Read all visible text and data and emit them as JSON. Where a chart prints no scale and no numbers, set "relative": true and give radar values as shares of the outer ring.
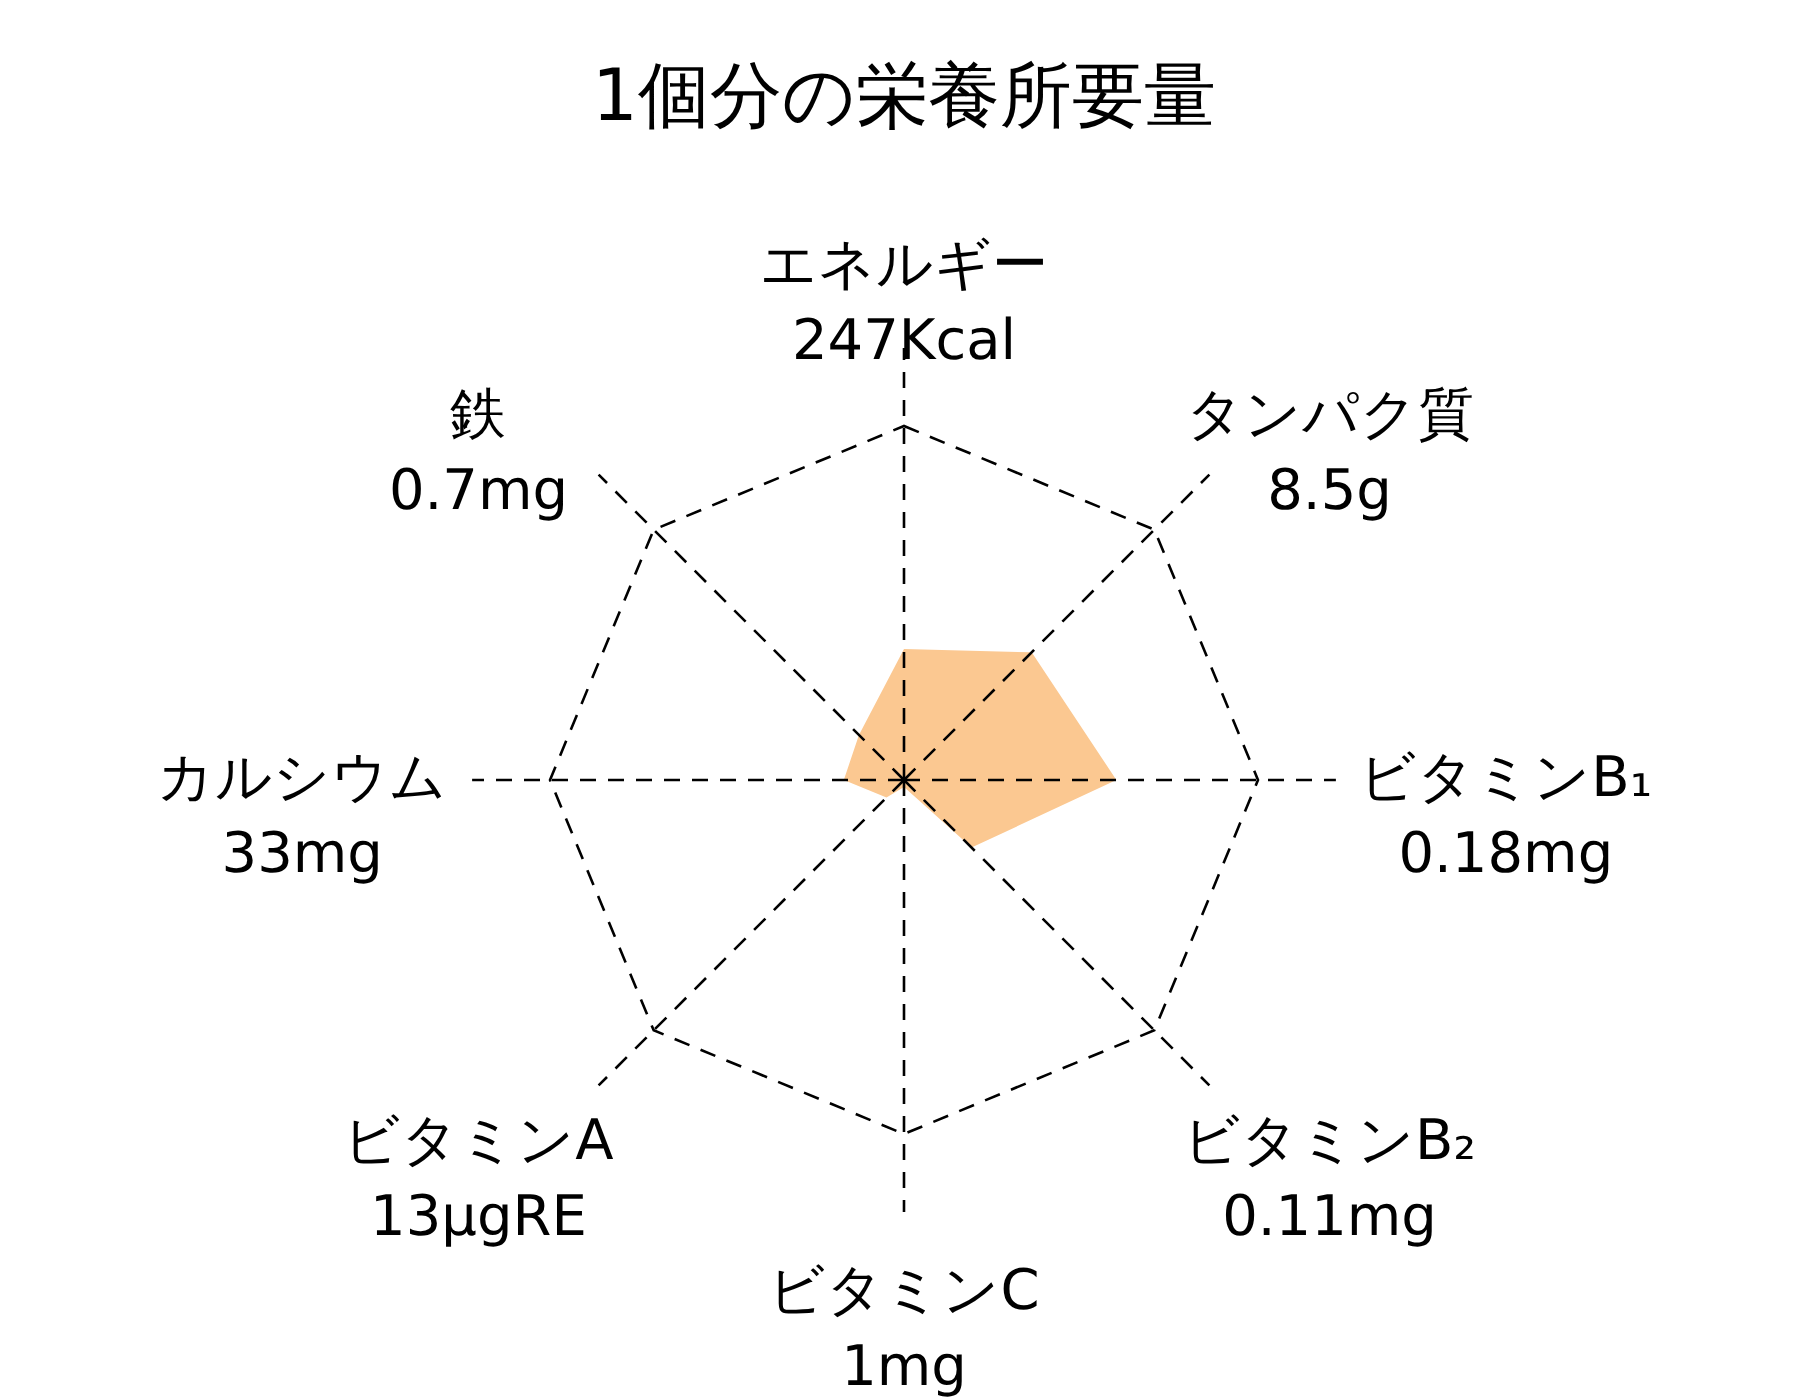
{
  "chart_data": {
    "type": "radar",
    "title": "1個分の栄養所要量",
    "relative": true,
    "grid": true,
    "marker": "none",
    "categories": [
      "エネルギー",
      "タンパク質",
      "ビタミンB₁",
      "ビタミンB₂",
      "ビタミンC",
      "ビタミンA",
      "カルシウム",
      "鉄"
    ],
    "annotations": [
      "247Kcal",
      "8.5g",
      "0.18mg",
      "0.11mg",
      "1mg",
      "13μgRE",
      "33mg",
      "0.7mg"
    ],
    "series": [
      {
        "color": "#fbc891",
        "values": [
          0.37,
          0.51,
          0.6,
          0.27,
          0.02,
          0.07,
          0.17,
          0.18
        ]
      }
    ]
  }
}
